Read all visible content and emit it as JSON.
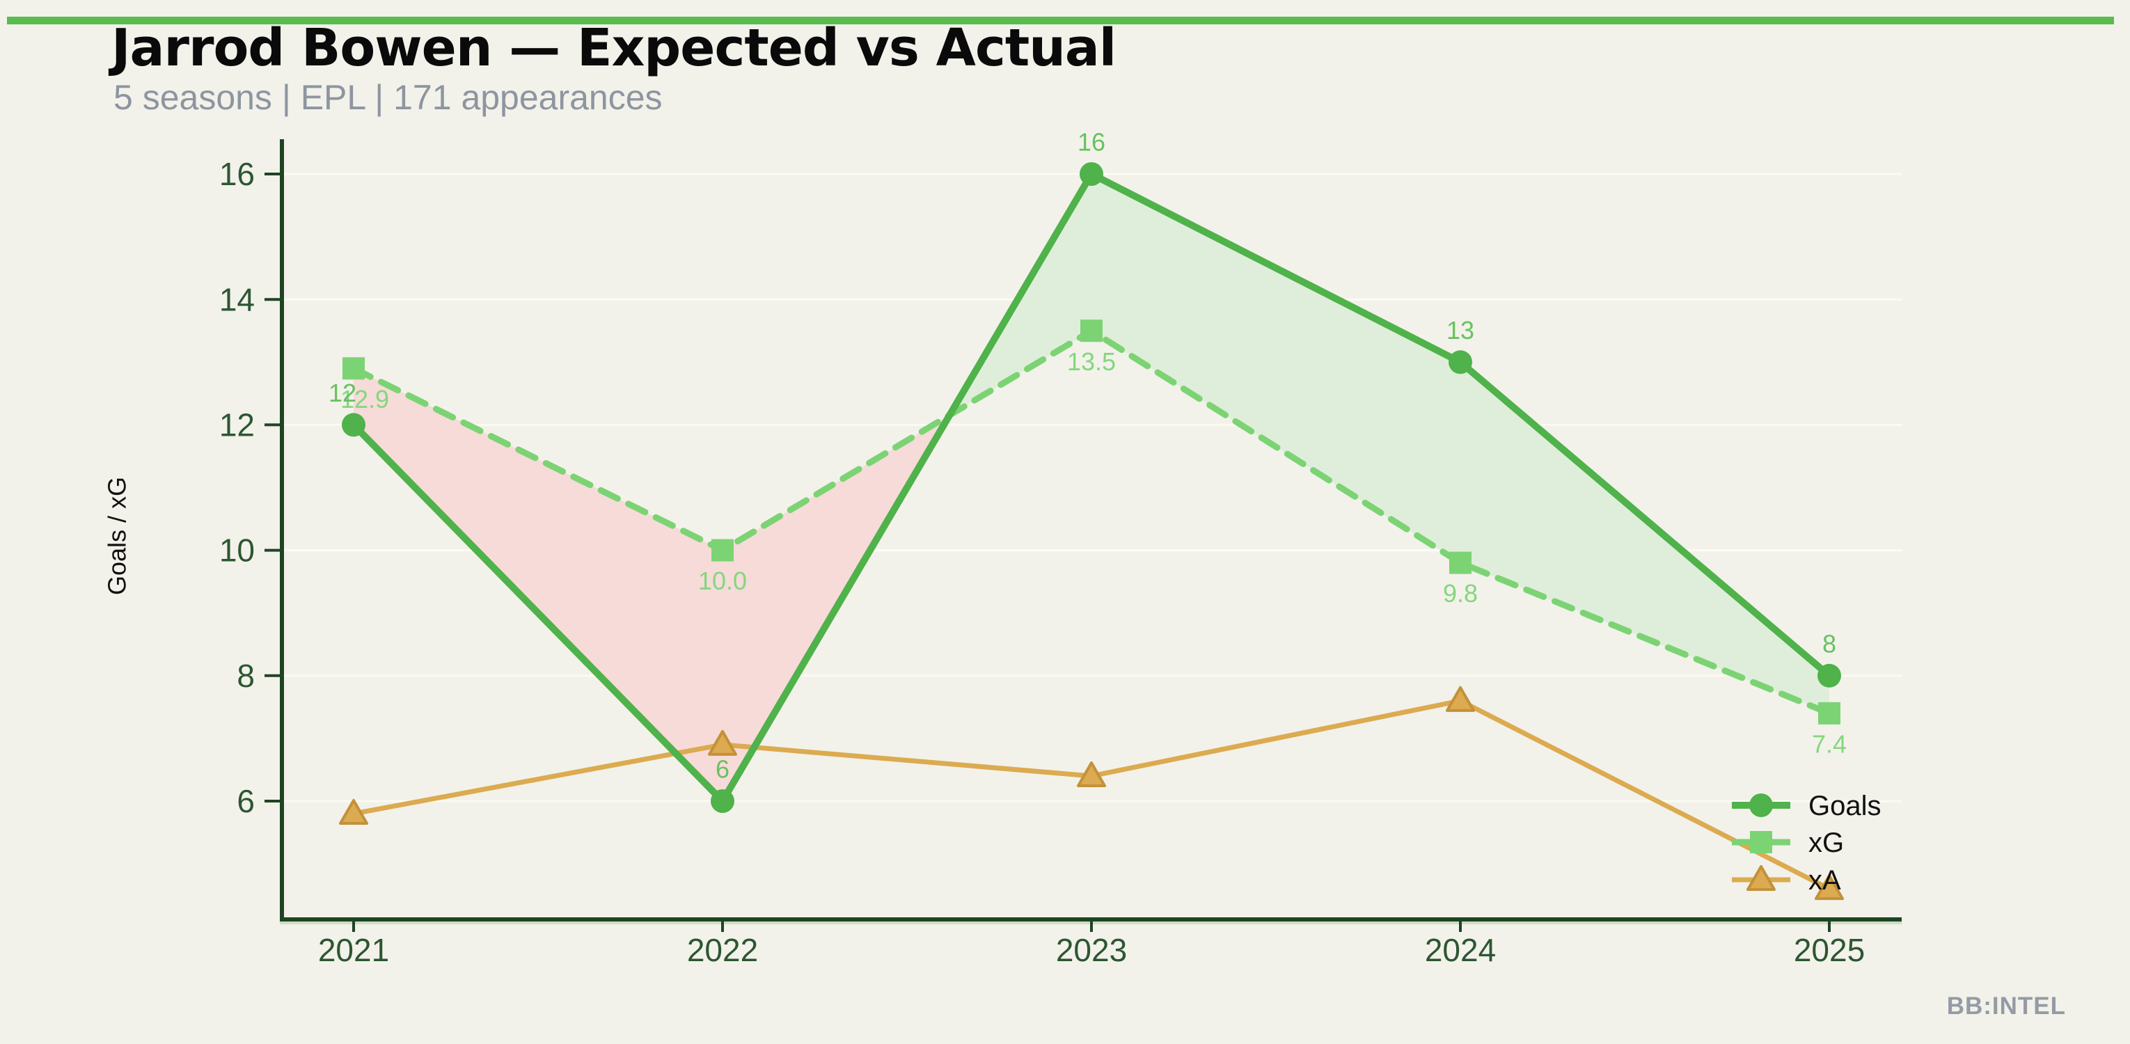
{
  "page": {
    "background": "#f2f2ea",
    "top_bar_color": "#5abb4f"
  },
  "header": {
    "title": "Jarrod Bowen — Expected vs Actual",
    "subtitle": "5 seasons | EPL | 171 appearances"
  },
  "watermark": "BB:INTEL",
  "chart_data": {
    "type": "line",
    "title": "Jarrod Bowen — Expected vs Actual",
    "categories": [
      "2021",
      "2022",
      "2023",
      "2024",
      "2025"
    ],
    "ylabel": "Goals / xG",
    "xlabel": "",
    "yticks": [
      6,
      8,
      10,
      12,
      14,
      16
    ],
    "ylim": [
      4.1,
      16.6
    ],
    "grid": true,
    "legend_position": "lower right",
    "series": [
      {
        "name": "Goals",
        "values": [
          12,
          6,
          16,
          13,
          8
        ],
        "point_labels": [
          "12",
          "6",
          "16",
          "13",
          "8"
        ],
        "color": "#4fb24a",
        "label_color": "#68c160",
        "marker": "circle",
        "line_style": "solid"
      },
      {
        "name": "xG",
        "values": [
          12.9,
          10.0,
          13.5,
          9.8,
          7.4
        ],
        "point_labels": [
          "12.9",
          "10.0",
          "13.5",
          "9.8",
          "7.4"
        ],
        "color": "#7cd374",
        "label_color": "#85d67e",
        "marker": "square",
        "line_style": "dashed"
      },
      {
        "name": "xA",
        "values": [
          5.8,
          6.9,
          6.4,
          7.6,
          4.6
        ],
        "point_labels": [],
        "color": "#dcaa50",
        "marker_edge_color": "#c3913a",
        "marker": "triangle",
        "line_style": "solid"
      }
    ],
    "fill_between": {
      "upper_series": "Goals",
      "lower_series": "xG",
      "above_color": "#dfeeda",
      "below_color": "#f6dbd9"
    },
    "axis_color": "#1f4424",
    "tick_label_color": "#2d5632",
    "gridline_color": "#fbfbf4"
  }
}
